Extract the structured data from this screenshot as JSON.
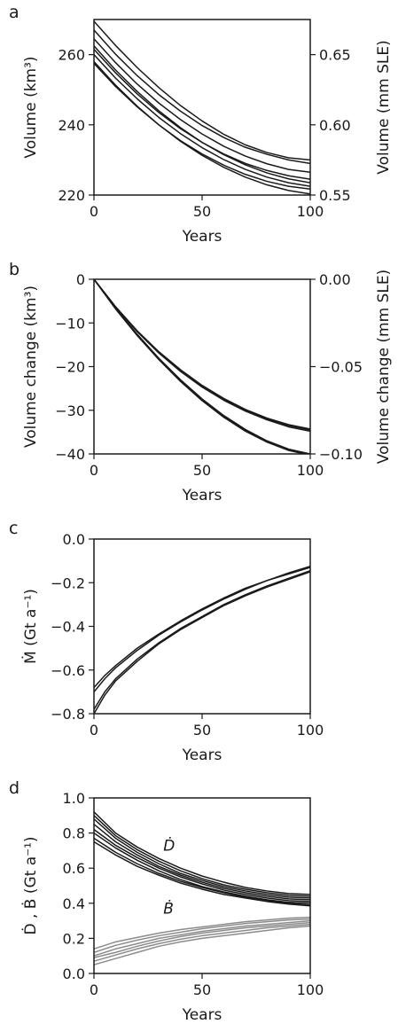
{
  "chart_data": [
    {
      "panel": "a",
      "type": "line",
      "xlabel": "Years",
      "ylabel": "Volume (km³)",
      "ylabel_right": "Volume (mm SLE)",
      "xlim": [
        0,
        100
      ],
      "ylim": [
        220,
        270
      ],
      "ylim_right": [
        0.55,
        0.675
      ],
      "xticks": [
        "0",
        "50",
        "100"
      ],
      "yticks": [
        "220",
        "240",
        "260"
      ],
      "yticks_right": [
        "0.55",
        "0.60",
        "0.65"
      ],
      "grid": false,
      "line_color": "#1a1a1a",
      "x": [
        0,
        10,
        20,
        30,
        40,
        50,
        60,
        70,
        80,
        90,
        100
      ],
      "series": [
        {
          "values": [
            269.5,
            262.6,
            256.3,
            250.6,
            245.5,
            241.1,
            237.3,
            234.3,
            232.1,
            230.6,
            230.0
          ]
        },
        {
          "values": [
            267.0,
            260.1,
            254.0,
            248.6,
            243.9,
            239.8,
            236.4,
            233.6,
            231.6,
            230.0,
            229.0
          ]
        },
        {
          "values": [
            264.5,
            257.7,
            251.6,
            246.2,
            241.5,
            237.4,
            233.9,
            231.1,
            228.9,
            227.3,
            226.5
          ]
        },
        {
          "values": [
            262.5,
            255.6,
            249.5,
            244.0,
            239.2,
            235.0,
            231.5,
            228.6,
            226.3,
            224.6,
            223.5
          ]
        },
        {
          "values": [
            261.5,
            254.8,
            248.8,
            243.5,
            238.9,
            235.0,
            231.7,
            229.0,
            227.0,
            225.5,
            224.5
          ]
        },
        {
          "values": [
            260.0,
            253.3,
            247.4,
            242.1,
            237.5,
            233.5,
            230.1,
            227.3,
            225.1,
            223.5,
            222.5
          ]
        },
        {
          "values": [
            258.0,
            251.3,
            245.3,
            240.0,
            235.3,
            231.3,
            227.9,
            225.1,
            222.9,
            221.3,
            220.3
          ]
        },
        {
          "values": [
            257.5,
            250.9,
            245.1,
            240.0,
            235.5,
            231.7,
            228.5,
            225.9,
            223.9,
            222.5,
            221.7
          ]
        }
      ]
    },
    {
      "panel": "b",
      "type": "line",
      "xlabel": "Years",
      "ylabel": "Volume change (km³)",
      "ylabel_right": "Volume change (mm SLE)",
      "xlim": [
        0,
        100
      ],
      "ylim": [
        -40,
        0
      ],
      "ylim_right": [
        -0.1,
        0.0
      ],
      "xticks": [
        "0",
        "50",
        "100"
      ],
      "yticks": [
        "0",
        "−10",
        "−20",
        "−30",
        "−40"
      ],
      "yticks_right": [
        "0.00",
        "−0.05",
        "−0.10"
      ],
      "grid": false,
      "line_color": "#1a1a1a",
      "x": [
        0,
        10,
        20,
        30,
        40,
        50,
        60,
        70,
        80,
        90,
        100
      ],
      "series": [
        {
          "values": [
            0,
            -6.3,
            -11.8,
            -16.6,
            -20.7,
            -24.3,
            -27.3,
            -29.8,
            -31.8,
            -33.3,
            -34.3
          ]
        },
        {
          "values": [
            0,
            -6.3,
            -11.9,
            -16.7,
            -20.9,
            -24.5,
            -27.5,
            -30.0,
            -32.0,
            -33.5,
            -34.5
          ]
        },
        {
          "values": [
            0,
            -6.4,
            -12.0,
            -16.9,
            -21.1,
            -24.7,
            -27.7,
            -30.2,
            -32.2,
            -33.8,
            -34.8
          ]
        },
        {
          "values": [
            0,
            -6.6,
            -12.6,
            -18.1,
            -23.0,
            -27.4,
            -31.2,
            -34.4,
            -37.0,
            -38.9,
            -40.0
          ]
        },
        {
          "values": [
            0,
            -6.7,
            -12.8,
            -18.3,
            -23.2,
            -27.6,
            -31.4,
            -34.6,
            -37.1,
            -39.0,
            -40.1
          ]
        },
        {
          "values": [
            0,
            -6.8,
            -12.9,
            -18.4,
            -23.4,
            -27.8,
            -31.6,
            -34.8,
            -37.3,
            -39.2,
            -40.3
          ]
        }
      ]
    },
    {
      "panel": "c",
      "type": "line",
      "xlabel": "Years",
      "ylabel": "Ṁ (Gt a⁻¹)",
      "xlim": [
        0,
        100
      ],
      "ylim": [
        -0.8,
        0.0
      ],
      "xticks": [
        "0",
        "50",
        "100"
      ],
      "yticks": [
        "0.0",
        "−0.2",
        "−0.4",
        "−0.6",
        "−0.8"
      ],
      "grid": false,
      "line_color": "#1a1a1a",
      "x": [
        0,
        5,
        10,
        20,
        30,
        40,
        50,
        60,
        70,
        80,
        90,
        100
      ],
      "series": [
        {
          "values": [
            -0.68,
            -0.625,
            -0.58,
            -0.5,
            -0.435,
            -0.375,
            -0.32,
            -0.27,
            -0.225,
            -0.19,
            -0.155,
            -0.125
          ]
        },
        {
          "values": [
            -0.7,
            -0.64,
            -0.59,
            -0.51,
            -0.44,
            -0.38,
            -0.325,
            -0.275,
            -0.23,
            -0.19,
            -0.16,
            -0.13
          ]
        },
        {
          "values": [
            -0.78,
            -0.7,
            -0.64,
            -0.55,
            -0.475,
            -0.41,
            -0.355,
            -0.3,
            -0.255,
            -0.215,
            -0.18,
            -0.145
          ]
        },
        {
          "values": [
            -0.8,
            -0.715,
            -0.65,
            -0.56,
            -0.48,
            -0.415,
            -0.36,
            -0.305,
            -0.26,
            -0.22,
            -0.185,
            -0.15
          ]
        }
      ]
    },
    {
      "panel": "d",
      "type": "line",
      "xlabel": "Years",
      "ylabel": "Ḋ , Ḃ (Gt a⁻¹)",
      "xlim": [
        0,
        100
      ],
      "ylim": [
        0.0,
        1.0
      ],
      "xticks": [
        "0",
        "50",
        "100"
      ],
      "yticks": [
        "0.0",
        "0.2",
        "0.4",
        "0.6",
        "0.8",
        "1.0"
      ],
      "grid": false,
      "annotations": [
        {
          "text": "Ḋ",
          "x": 30,
          "y": 0.73,
          "color": "#1a1a1a"
        },
        {
          "text": "Ḃ",
          "x": 30,
          "y": 0.37,
          "color": "#8c8c8c"
        }
      ],
      "x": [
        0,
        10,
        20,
        30,
        40,
        50,
        60,
        70,
        80,
        90,
        100
      ],
      "series": [
        {
          "group": "D",
          "color": "#1a1a1a",
          "values": [
            0.92,
            0.8,
            0.72,
            0.655,
            0.6,
            0.555,
            0.52,
            0.49,
            0.47,
            0.455,
            0.45
          ]
        },
        {
          "group": "D",
          "color": "#1a1a1a",
          "values": [
            0.9,
            0.785,
            0.705,
            0.64,
            0.585,
            0.54,
            0.505,
            0.48,
            0.46,
            0.445,
            0.44
          ]
        },
        {
          "group": "D",
          "color": "#1a1a1a",
          "values": [
            0.88,
            0.77,
            0.69,
            0.625,
            0.57,
            0.53,
            0.495,
            0.47,
            0.45,
            0.435,
            0.43
          ]
        },
        {
          "group": "D",
          "color": "#1a1a1a",
          "values": [
            0.85,
            0.75,
            0.675,
            0.61,
            0.56,
            0.52,
            0.485,
            0.46,
            0.44,
            0.425,
            0.42
          ]
        },
        {
          "group": "D",
          "color": "#1a1a1a",
          "values": [
            0.82,
            0.73,
            0.66,
            0.6,
            0.55,
            0.51,
            0.475,
            0.45,
            0.43,
            0.415,
            0.41
          ]
        },
        {
          "group": "D",
          "color": "#1a1a1a",
          "values": [
            0.8,
            0.715,
            0.645,
            0.585,
            0.535,
            0.495,
            0.465,
            0.44,
            0.42,
            0.405,
            0.4
          ]
        },
        {
          "group": "D",
          "color": "#1a1a1a",
          "values": [
            0.77,
            0.69,
            0.625,
            0.57,
            0.525,
            0.49,
            0.46,
            0.435,
            0.415,
            0.4,
            0.39
          ]
        },
        {
          "group": "D",
          "color": "#1a1a1a",
          "values": [
            0.75,
            0.675,
            0.61,
            0.56,
            0.515,
            0.48,
            0.45,
            0.43,
            0.41,
            0.395,
            0.385
          ]
        },
        {
          "group": "B",
          "color": "#8c8c8c",
          "values": [
            0.14,
            0.18,
            0.205,
            0.23,
            0.25,
            0.265,
            0.28,
            0.295,
            0.305,
            0.315,
            0.32
          ]
        },
        {
          "group": "B",
          "color": "#8c8c8c",
          "values": [
            0.12,
            0.16,
            0.19,
            0.215,
            0.235,
            0.255,
            0.27,
            0.285,
            0.295,
            0.305,
            0.31
          ]
        },
        {
          "group": "B",
          "color": "#8c8c8c",
          "values": [
            0.1,
            0.14,
            0.17,
            0.2,
            0.22,
            0.24,
            0.255,
            0.27,
            0.28,
            0.29,
            0.3
          ]
        },
        {
          "group": "B",
          "color": "#8c8c8c",
          "values": [
            0.09,
            0.12,
            0.155,
            0.185,
            0.21,
            0.23,
            0.245,
            0.26,
            0.27,
            0.28,
            0.29
          ]
        },
        {
          "group": "B",
          "color": "#8c8c8c",
          "values": [
            0.07,
            0.105,
            0.14,
            0.17,
            0.195,
            0.215,
            0.23,
            0.245,
            0.26,
            0.27,
            0.28
          ]
        },
        {
          "group": "B",
          "color": "#8c8c8c",
          "values": [
            0.05,
            0.085,
            0.12,
            0.155,
            0.18,
            0.2,
            0.215,
            0.23,
            0.245,
            0.26,
            0.27
          ]
        }
      ]
    }
  ]
}
